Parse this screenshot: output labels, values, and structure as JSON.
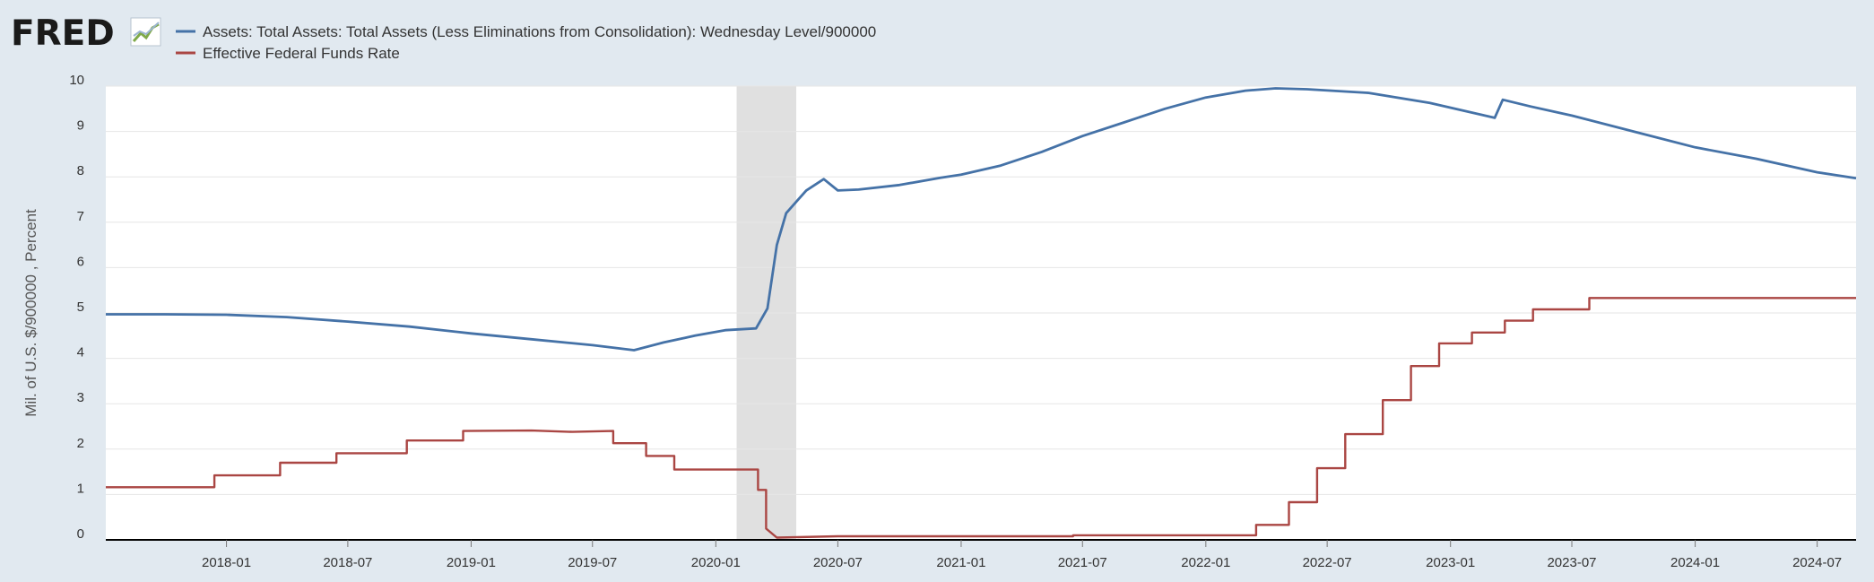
{
  "branding": {
    "logo_text": "FRED",
    "logo_icon": "fred-line-chart-icon"
  },
  "chart_data": {
    "type": "line",
    "x_axis": {
      "type": "date",
      "range": [
        "2017-07-05",
        "2024-08-28"
      ],
      "tick_labels": [
        "2018-01",
        "2018-07",
        "2019-01",
        "2019-07",
        "2020-01",
        "2020-07",
        "2021-01",
        "2021-07",
        "2022-01",
        "2022-07",
        "2023-01",
        "2023-07",
        "2024-01",
        "2024-07"
      ]
    },
    "y_axis": {
      "label": "Mil. of U.S. $/900000 , Percent",
      "range": [
        0,
        10
      ],
      "tick_labels": [
        "0",
        "1",
        "2",
        "3",
        "4",
        "5",
        "6",
        "7",
        "8",
        "9",
        "10"
      ],
      "grid": true
    },
    "legend": {
      "position": "top-left"
    },
    "recession_shading": {
      "start": "2020-02-01",
      "end": "2020-04-30",
      "color": "#e0e0e0"
    },
    "series": [
      {
        "name": "Assets: Total Assets: Total Assets (Less Eliminations from Consolidation): Wednesday Level/900000",
        "color": "#4572a7",
        "points": [
          [
            "2017-07-05",
            4.97
          ],
          [
            "2017-10-01",
            4.97
          ],
          [
            "2018-01-01",
            4.96
          ],
          [
            "2018-04-01",
            4.91
          ],
          [
            "2018-07-01",
            4.81
          ],
          [
            "2018-10-01",
            4.7
          ],
          [
            "2019-01-01",
            4.55
          ],
          [
            "2019-04-01",
            4.42
          ],
          [
            "2019-07-01",
            4.29
          ],
          [
            "2019-09-01",
            4.18
          ],
          [
            "2019-10-15",
            4.35
          ],
          [
            "2019-12-01",
            4.5
          ],
          [
            "2020-01-15",
            4.62
          ],
          [
            "2020-03-01",
            4.66
          ],
          [
            "2020-03-18",
            5.1
          ],
          [
            "2020-04-01",
            6.5
          ],
          [
            "2020-04-15",
            7.2
          ],
          [
            "2020-05-15",
            7.7
          ],
          [
            "2020-06-10",
            7.95
          ],
          [
            "2020-07-01",
            7.7
          ],
          [
            "2020-08-01",
            7.72
          ],
          [
            "2020-10-01",
            7.82
          ],
          [
            "2020-12-01",
            7.98
          ],
          [
            "2021-01-01",
            8.05
          ],
          [
            "2021-03-01",
            8.25
          ],
          [
            "2021-05-01",
            8.55
          ],
          [
            "2021-07-01",
            8.9
          ],
          [
            "2021-09-01",
            9.2
          ],
          [
            "2021-11-01",
            9.5
          ],
          [
            "2022-01-01",
            9.75
          ],
          [
            "2022-03-01",
            9.9
          ],
          [
            "2022-04-15",
            9.95
          ],
          [
            "2022-06-01",
            9.93
          ],
          [
            "2022-09-01",
            9.85
          ],
          [
            "2022-12-01",
            9.63
          ],
          [
            "2023-03-08",
            9.3
          ],
          [
            "2023-03-20",
            9.7
          ],
          [
            "2023-05-01",
            9.55
          ],
          [
            "2023-07-01",
            9.35
          ],
          [
            "2023-10-01",
            9.0
          ],
          [
            "2024-01-01",
            8.65
          ],
          [
            "2024-04-01",
            8.4
          ],
          [
            "2024-07-01",
            8.1
          ],
          [
            "2024-08-28",
            7.97
          ]
        ]
      },
      {
        "name": "Effective Federal Funds Rate",
        "color": "#aa4643",
        "points": [
          [
            "2017-07-05",
            1.16
          ],
          [
            "2017-12-14",
            1.16
          ],
          [
            "2017-12-14",
            1.42
          ],
          [
            "2018-03-22",
            1.42
          ],
          [
            "2018-03-22",
            1.7
          ],
          [
            "2018-06-14",
            1.7
          ],
          [
            "2018-06-14",
            1.91
          ],
          [
            "2018-09-27",
            1.91
          ],
          [
            "2018-09-27",
            2.19
          ],
          [
            "2018-12-20",
            2.19
          ],
          [
            "2018-12-20",
            2.4
          ],
          [
            "2019-04-01",
            2.41
          ],
          [
            "2019-06-01",
            2.38
          ],
          [
            "2019-08-01",
            2.4
          ],
          [
            "2019-08-01",
            2.13
          ],
          [
            "2019-09-19",
            2.13
          ],
          [
            "2019-09-19",
            1.85
          ],
          [
            "2019-10-31",
            1.85
          ],
          [
            "2019-10-31",
            1.55
          ],
          [
            "2020-03-04",
            1.55
          ],
          [
            "2020-03-04",
            1.1
          ],
          [
            "2020-03-16",
            1.1
          ],
          [
            "2020-03-16",
            0.25
          ],
          [
            "2020-04-01",
            0.05
          ],
          [
            "2020-07-01",
            0.08
          ],
          [
            "2021-01-01",
            0.08
          ],
          [
            "2021-06-17",
            0.08
          ],
          [
            "2021-06-17",
            0.1
          ],
          [
            "2022-03-17",
            0.1
          ],
          [
            "2022-03-17",
            0.33
          ],
          [
            "2022-05-05",
            0.33
          ],
          [
            "2022-05-05",
            0.83
          ],
          [
            "2022-06-16",
            0.83
          ],
          [
            "2022-06-16",
            1.58
          ],
          [
            "2022-07-28",
            1.58
          ],
          [
            "2022-07-28",
            2.33
          ],
          [
            "2022-09-22",
            2.33
          ],
          [
            "2022-09-22",
            3.08
          ],
          [
            "2022-11-03",
            3.08
          ],
          [
            "2022-11-03",
            3.83
          ],
          [
            "2022-12-15",
            3.83
          ],
          [
            "2022-12-15",
            4.33
          ],
          [
            "2023-02-02",
            4.33
          ],
          [
            "2023-02-02",
            4.57
          ],
          [
            "2023-03-23",
            4.57
          ],
          [
            "2023-03-23",
            4.83
          ],
          [
            "2023-05-04",
            4.83
          ],
          [
            "2023-05-04",
            5.08
          ],
          [
            "2023-07-27",
            5.08
          ],
          [
            "2023-07-27",
            5.33
          ],
          [
            "2024-08-28",
            5.33
          ]
        ]
      }
    ]
  }
}
